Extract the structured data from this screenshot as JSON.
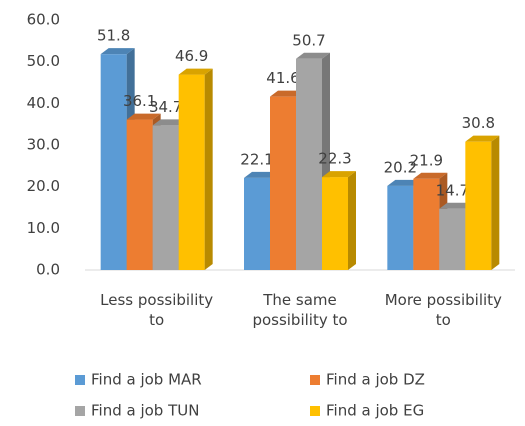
{
  "chart_data": {
    "type": "bar3d",
    "categories": [
      "Less possibility to",
      "The same possibility to",
      "More possibility to"
    ],
    "series": [
      {
        "name": "Find a job MAR",
        "color": "#5b9bd5",
        "values": [
          51.8,
          22.1,
          20.2
        ]
      },
      {
        "name": "Find a job DZ",
        "color": "#ed7d31",
        "values": [
          36.1,
          41.6,
          21.9
        ]
      },
      {
        "name": "Find a job TUN",
        "color": "#a5a5a5",
        "values": [
          34.7,
          50.7,
          14.7
        ]
      },
      {
        "name": "Find a job EG",
        "color": "#ffc000",
        "values": [
          46.9,
          22.3,
          30.8
        ]
      }
    ],
    "ylim": [
      0,
      60
    ],
    "yticks": [
      {
        "value": 0,
        "label": "0.0"
      },
      {
        "value": 10,
        "label": "10.0"
      },
      {
        "value": 20,
        "label": "20.0"
      },
      {
        "value": 30,
        "label": "30.0"
      },
      {
        "value": 40,
        "label": "40.0"
      },
      {
        "value": 50,
        "label": "50.0"
      },
      {
        "value": 60,
        "label": "60.0"
      }
    ],
    "legend": "bottom"
  }
}
